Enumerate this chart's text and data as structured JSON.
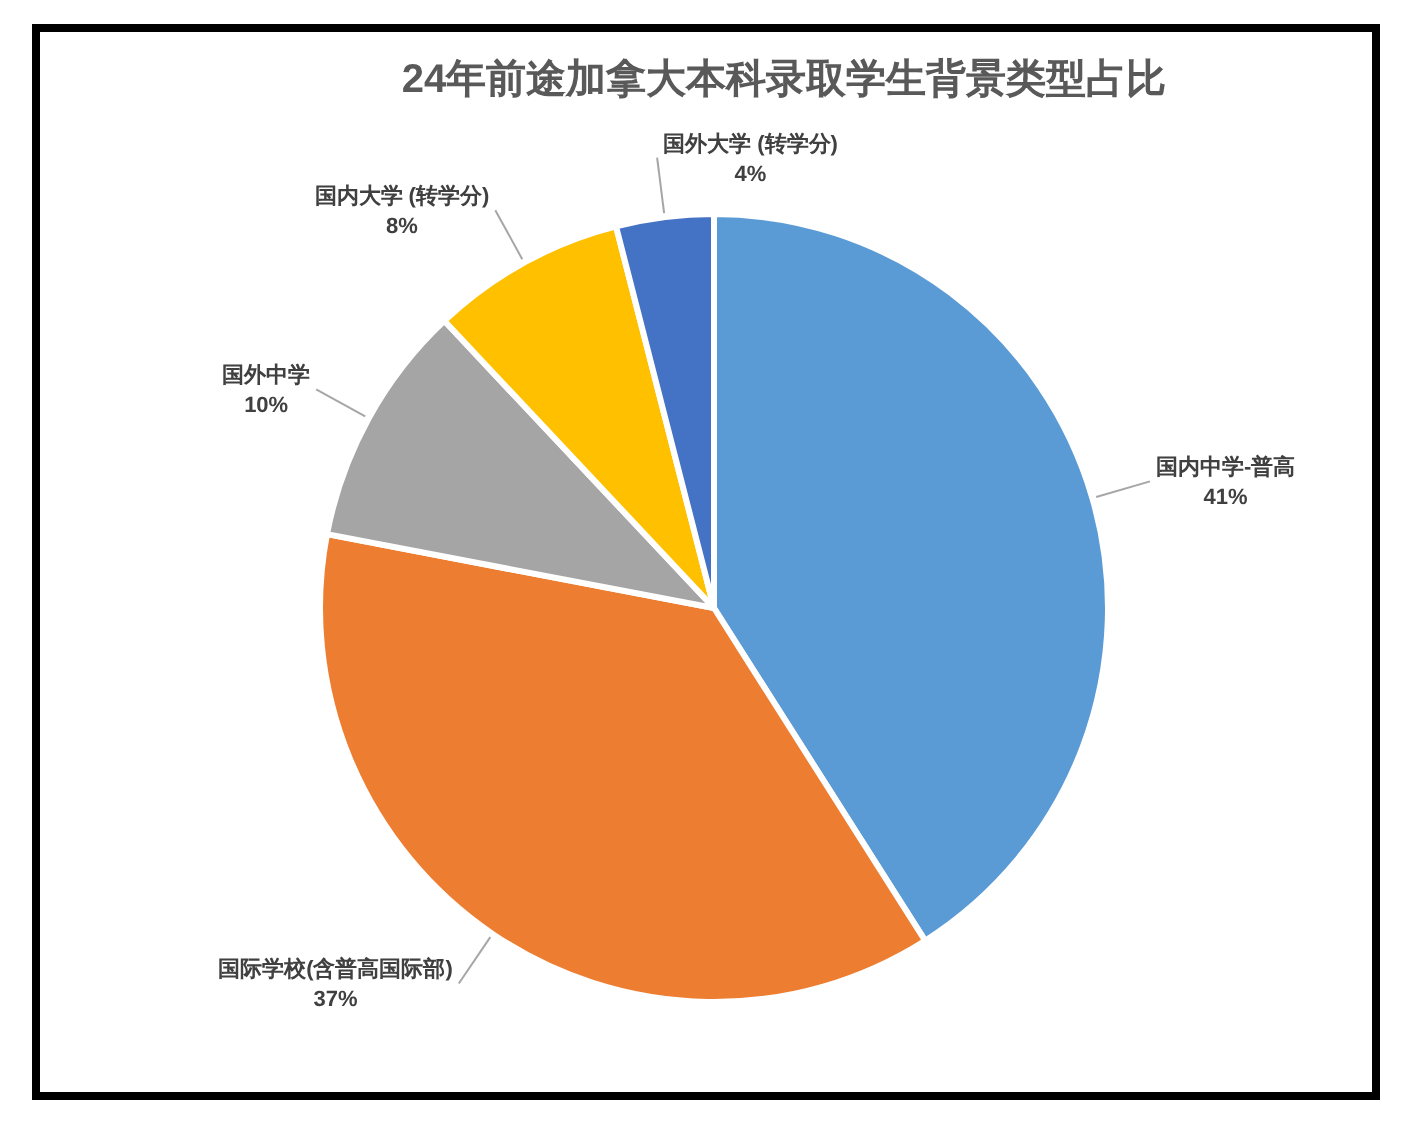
{
  "chart_data": {
    "type": "pie",
    "title": "24年前途加拿大本科录取学生背景类型占比",
    "categories": [
      "国内中学-普高",
      "国际学校(含普高国际部)",
      "国外中学",
      "国内大学 (转学分)",
      "国外大学 (转学分)"
    ],
    "values": [
      41,
      37,
      10,
      8,
      4
    ],
    "colors": [
      "#5b9bd5",
      "#ed7d31",
      "#a5a5a5",
      "#ffc000",
      "#4472c4"
    ],
    "value_labels": [
      "41%",
      "37%",
      "10%",
      "8%",
      "4%"
    ]
  }
}
